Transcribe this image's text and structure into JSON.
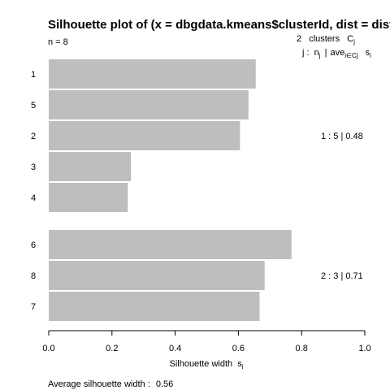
{
  "chart_data": {
    "type": "bar",
    "orientation": "horizontal",
    "title": "Silhouette plot of (x = dbgdata.kmeans$clusterId, dist = distM",
    "n_label": "n = 8",
    "header": {
      "clusters_count": "2",
      "clusters_word": "clusters",
      "c_symbol": "C",
      "c_sub": "j",
      "j_prefix": "j :",
      "n": "n",
      "n_sub": "j",
      "sep": "|",
      "ave": "ave",
      "ave_sub": "i∈Cj",
      "s": "s",
      "s_sub": "i"
    },
    "xlabel": "Silhouette width",
    "xlabel_sub": "i",
    "xlabel_s": "s",
    "xlim": [
      0,
      1
    ],
    "xticks": [
      "0.0",
      "0.2",
      "0.4",
      "0.6",
      "0.8",
      "1.0"
    ],
    "bar_color": "#bebebe",
    "clusters": [
      {
        "summary": "1 :  5  |  0.48",
        "items": [
          {
            "label": "1",
            "value": 0.655
          },
          {
            "label": "5",
            "value": 0.632
          },
          {
            "label": "2",
            "value": 0.605
          },
          {
            "label": "3",
            "value": 0.26
          },
          {
            "label": "4",
            "value": 0.25
          }
        ]
      },
      {
        "summary": "2 :  3  |  0.71",
        "items": [
          {
            "label": "6",
            "value": 0.768
          },
          {
            "label": "8",
            "value": 0.683
          },
          {
            "label": "7",
            "value": 0.667
          }
        ]
      }
    ],
    "average_label": "Average silhouette width :",
    "average_value": "0.56"
  }
}
